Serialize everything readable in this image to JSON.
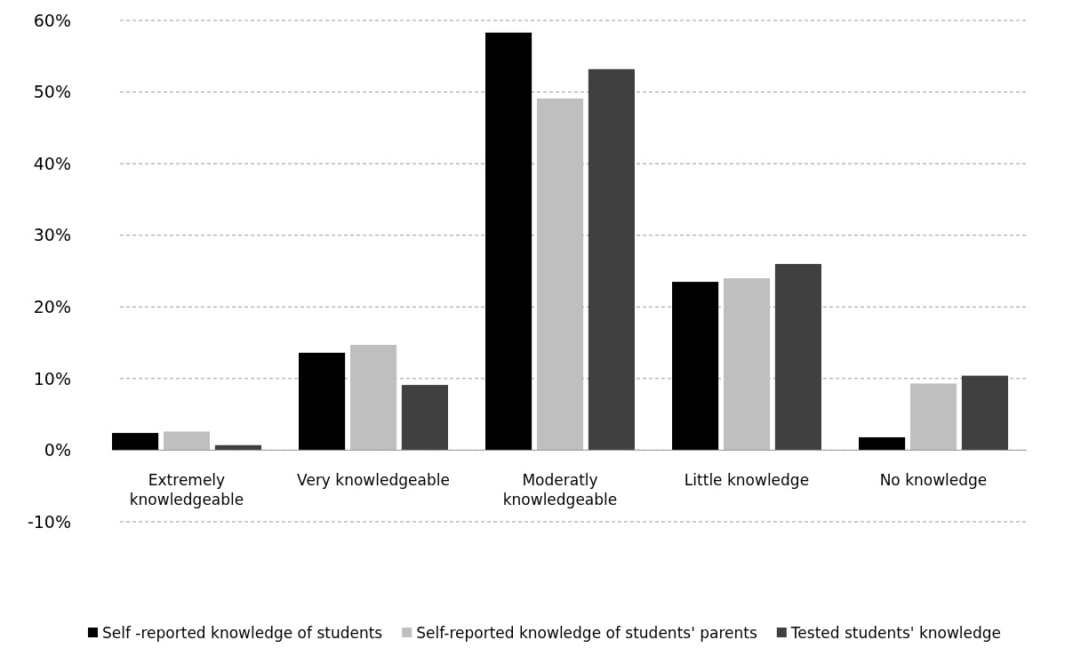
{
  "chart_data": {
    "type": "bar",
    "categories": [
      "Extremely knowledgeable",
      "Very knowledgeable",
      "Moderatly knowledgeable",
      "Little knowledge",
      "No knowledge"
    ],
    "series": [
      {
        "name": "Self -reported knowledge of students",
        "color": "#000000",
        "values": [
          2.4,
          13.6,
          58.3,
          23.5,
          1.8
        ]
      },
      {
        "name": "Self-reported knowledge of students' parents",
        "color": "#bfbfbf",
        "values": [
          2.6,
          14.7,
          49.1,
          24.0,
          9.3
        ]
      },
      {
        "name": "Tested students' knowledge",
        "color": "#404040",
        "values": [
          0.7,
          9.1,
          53.2,
          26.0,
          10.4
        ]
      }
    ],
    "ylim": [
      -10,
      60
    ],
    "yticks": [
      {
        "value": -10,
        "label": "-10%"
      },
      {
        "value": 0,
        "label": "0%"
      },
      {
        "value": 10,
        "label": "10%"
      },
      {
        "value": 20,
        "label": "20%"
      },
      {
        "value": 30,
        "label": "30%"
      },
      {
        "value": 40,
        "label": "40%"
      },
      {
        "value": 50,
        "label": "50%"
      },
      {
        "value": 60,
        "label": "60%"
      }
    ],
    "grid": "y",
    "legend": "bottom"
  }
}
